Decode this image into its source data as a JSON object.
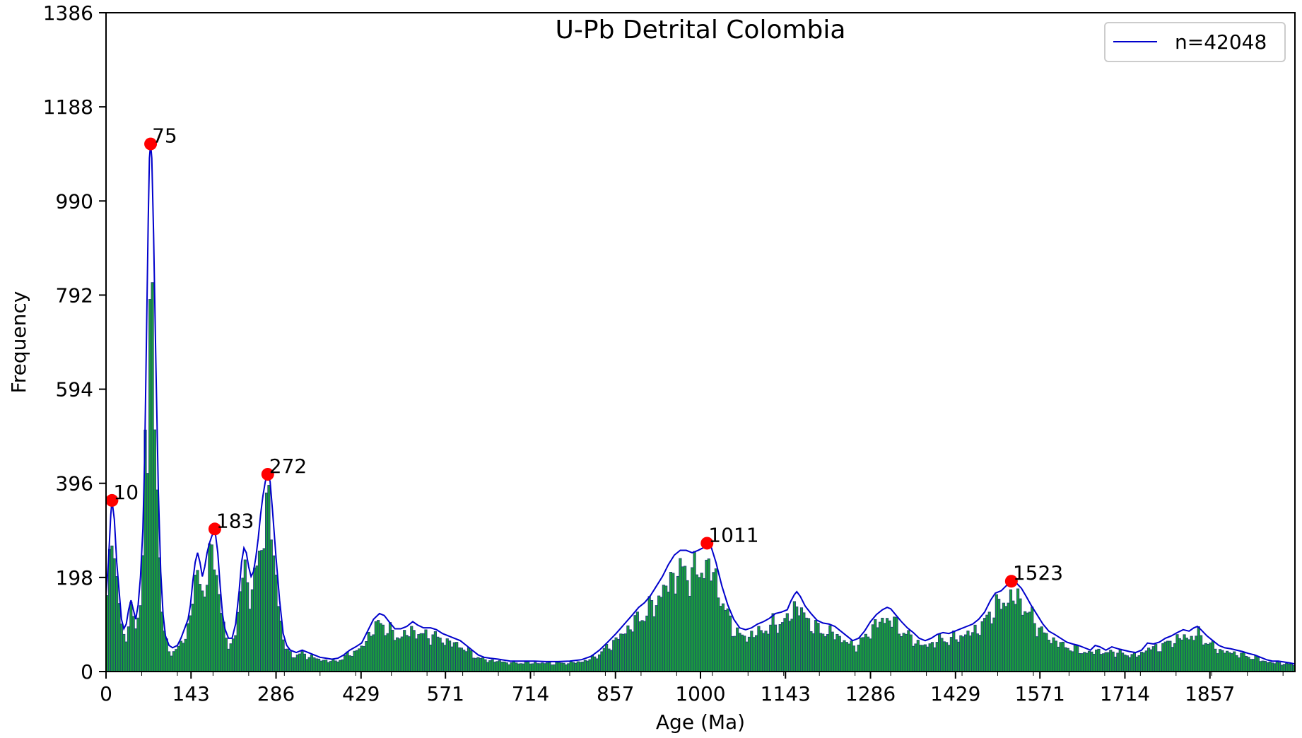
{
  "chart_data": {
    "type": "bar",
    "title": "U-Pb Detrital Colombia",
    "xlabel": "Age (Ma)",
    "ylabel": "Frequency",
    "xlim": [
      0,
      2000
    ],
    "ylim": [
      0,
      1386
    ],
    "x_ticks": [
      0,
      143,
      286,
      429,
      571,
      714,
      857,
      1000,
      1143,
      1286,
      1429,
      1571,
      1714,
      1857
    ],
    "y_ticks": [
      0,
      198,
      396,
      594,
      792,
      990,
      1188,
      1386
    ],
    "legend": {
      "position": "top-right",
      "entries": [
        {
          "label": "n=42048",
          "color": "#0000cc"
        }
      ]
    },
    "bar_color": "#1a9d3c",
    "bar_edge_color": "#1f3a7a",
    "curve_color": "#0000cc",
    "peak_color": "#ff0000",
    "bin_width": 4,
    "curve_points": [
      [
        0,
        160
      ],
      [
        4,
        230
      ],
      [
        8,
        330
      ],
      [
        10,
        360
      ],
      [
        14,
        320
      ],
      [
        18,
        230
      ],
      [
        22,
        170
      ],
      [
        26,
        110
      ],
      [
        30,
        90
      ],
      [
        34,
        100
      ],
      [
        38,
        130
      ],
      [
        42,
        150
      ],
      [
        46,
        130
      ],
      [
        50,
        110
      ],
      [
        54,
        140
      ],
      [
        58,
        200
      ],
      [
        62,
        300
      ],
      [
        65,
        450
      ],
      [
        68,
        700
      ],
      [
        71,
        950
      ],
      [
        73,
        1080
      ],
      [
        75,
        1110
      ],
      [
        77,
        1080
      ],
      [
        80,
        920
      ],
      [
        84,
        640
      ],
      [
        88,
        380
      ],
      [
        92,
        210
      ],
      [
        96,
        120
      ],
      [
        100,
        75
      ],
      [
        106,
        55
      ],
      [
        112,
        50
      ],
      [
        120,
        55
      ],
      [
        126,
        70
      ],
      [
        132,
        90
      ],
      [
        138,
        110
      ],
      [
        142,
        140
      ],
      [
        146,
        190
      ],
      [
        150,
        230
      ],
      [
        154,
        250
      ],
      [
        158,
        230
      ],
      [
        162,
        200
      ],
      [
        166,
        220
      ],
      [
        170,
        250
      ],
      [
        174,
        270
      ],
      [
        178,
        285
      ],
      [
        183,
        300
      ],
      [
        188,
        250
      ],
      [
        192,
        180
      ],
      [
        196,
        120
      ],
      [
        200,
        90
      ],
      [
        206,
        70
      ],
      [
        212,
        70
      ],
      [
        218,
        100
      ],
      [
        224,
        170
      ],
      [
        228,
        230
      ],
      [
        232,
        260
      ],
      [
        236,
        250
      ],
      [
        240,
        220
      ],
      [
        244,
        200
      ],
      [
        248,
        210
      ],
      [
        252,
        240
      ],
      [
        256,
        280
      ],
      [
        260,
        330
      ],
      [
        264,
        370
      ],
      [
        268,
        400
      ],
      [
        272,
        415
      ],
      [
        276,
        400
      ],
      [
        280,
        340
      ],
      [
        286,
        240
      ],
      [
        292,
        150
      ],
      [
        298,
        80
      ],
      [
        304,
        55
      ],
      [
        310,
        45
      ],
      [
        320,
        40
      ],
      [
        330,
        45
      ],
      [
        340,
        40
      ],
      [
        350,
        35
      ],
      [
        360,
        30
      ],
      [
        370,
        28
      ],
      [
        380,
        26
      ],
      [
        390,
        28
      ],
      [
        400,
        35
      ],
      [
        410,
        45
      ],
      [
        420,
        52
      ],
      [
        430,
        60
      ],
      [
        440,
        85
      ],
      [
        450,
        110
      ],
      [
        460,
        122
      ],
      [
        468,
        118
      ],
      [
        476,
        105
      ],
      [
        486,
        90
      ],
      [
        496,
        90
      ],
      [
        506,
        95
      ],
      [
        516,
        105
      ],
      [
        524,
        98
      ],
      [
        534,
        92
      ],
      [
        546,
        92
      ],
      [
        556,
        88
      ],
      [
        566,
        80
      ],
      [
        576,
        75
      ],
      [
        586,
        70
      ],
      [
        596,
        65
      ],
      [
        606,
        55
      ],
      [
        616,
        45
      ],
      [
        626,
        35
      ],
      [
        636,
        30
      ],
      [
        646,
        28
      ],
      [
        660,
        26
      ],
      [
        680,
        22
      ],
      [
        700,
        22
      ],
      [
        720,
        22
      ],
      [
        740,
        21
      ],
      [
        760,
        21
      ],
      [
        780,
        22
      ],
      [
        800,
        25
      ],
      [
        816,
        32
      ],
      [
        830,
        45
      ],
      [
        844,
        62
      ],
      [
        858,
        80
      ],
      [
        872,
        100
      ],
      [
        886,
        120
      ],
      [
        896,
        135
      ],
      [
        906,
        145
      ],
      [
        916,
        160
      ],
      [
        926,
        180
      ],
      [
        936,
        200
      ],
      [
        946,
        225
      ],
      [
        956,
        245
      ],
      [
        966,
        255
      ],
      [
        976,
        255
      ],
      [
        986,
        250
      ],
      [
        996,
        255
      ],
      [
        1004,
        260
      ],
      [
        1011,
        270
      ],
      [
        1018,
        262
      ],
      [
        1026,
        230
      ],
      [
        1036,
        180
      ],
      [
        1046,
        140
      ],
      [
        1056,
        110
      ],
      [
        1066,
        92
      ],
      [
        1076,
        88
      ],
      [
        1086,
        92
      ],
      [
        1096,
        100
      ],
      [
        1106,
        105
      ],
      [
        1116,
        112
      ],
      [
        1126,
        122
      ],
      [
        1136,
        125
      ],
      [
        1146,
        130
      ],
      [
        1152,
        148
      ],
      [
        1158,
        162
      ],
      [
        1162,
        168
      ],
      [
        1168,
        158
      ],
      [
        1176,
        138
      ],
      [
        1186,
        122
      ],
      [
        1196,
        108
      ],
      [
        1206,
        102
      ],
      [
        1216,
        100
      ],
      [
        1226,
        95
      ],
      [
        1236,
        85
      ],
      [
        1246,
        75
      ],
      [
        1256,
        65
      ],
      [
        1266,
        70
      ],
      [
        1276,
        85
      ],
      [
        1286,
        105
      ],
      [
        1296,
        120
      ],
      [
        1306,
        130
      ],
      [
        1314,
        135
      ],
      [
        1320,
        132
      ],
      [
        1328,
        120
      ],
      [
        1338,
        105
      ],
      [
        1348,
        92
      ],
      [
        1358,
        82
      ],
      [
        1368,
        70
      ],
      [
        1378,
        65
      ],
      [
        1388,
        70
      ],
      [
        1398,
        78
      ],
      [
        1408,
        82
      ],
      [
        1418,
        80
      ],
      [
        1428,
        85
      ],
      [
        1438,
        90
      ],
      [
        1448,
        95
      ],
      [
        1458,
        100
      ],
      [
        1468,
        110
      ],
      [
        1478,
        125
      ],
      [
        1488,
        150
      ],
      [
        1496,
        165
      ],
      [
        1506,
        170
      ],
      [
        1514,
        180
      ],
      [
        1523,
        190
      ],
      [
        1530,
        188
      ],
      [
        1540,
        175
      ],
      [
        1548,
        158
      ],
      [
        1556,
        140
      ],
      [
        1566,
        120
      ],
      [
        1576,
        100
      ],
      [
        1586,
        85
      ],
      [
        1596,
        78
      ],
      [
        1606,
        70
      ],
      [
        1616,
        62
      ],
      [
        1626,
        58
      ],
      [
        1636,
        55
      ],
      [
        1646,
        50
      ],
      [
        1656,
        45
      ],
      [
        1664,
        55
      ],
      [
        1672,
        52
      ],
      [
        1682,
        45
      ],
      [
        1692,
        52
      ],
      [
        1702,
        48
      ],
      [
        1712,
        45
      ],
      [
        1722,
        42
      ],
      [
        1732,
        40
      ],
      [
        1742,
        45
      ],
      [
        1752,
        60
      ],
      [
        1762,
        58
      ],
      [
        1772,
        62
      ],
      [
        1782,
        70
      ],
      [
        1792,
        75
      ],
      [
        1802,
        82
      ],
      [
        1812,
        88
      ],
      [
        1822,
        85
      ],
      [
        1830,
        92
      ],
      [
        1836,
        95
      ],
      [
        1842,
        88
      ],
      [
        1852,
        75
      ],
      [
        1862,
        65
      ],
      [
        1872,
        55
      ],
      [
        1882,
        50
      ],
      [
        1892,
        48
      ],
      [
        1902,
        45
      ],
      [
        1912,
        42
      ],
      [
        1922,
        38
      ],
      [
        1932,
        35
      ],
      [
        1942,
        30
      ],
      [
        1952,
        25
      ],
      [
        1962,
        22
      ],
      [
        1972,
        22
      ],
      [
        1982,
        20
      ],
      [
        1992,
        18
      ],
      [
        2000,
        16
      ]
    ],
    "peaks": [
      {
        "age": 10,
        "frequency": 360,
        "label": "10"
      },
      {
        "age": 75,
        "frequency": 1110,
        "label": "75"
      },
      {
        "age": 183,
        "frequency": 300,
        "label": "183"
      },
      {
        "age": 272,
        "frequency": 415,
        "label": "272"
      },
      {
        "age": 1011,
        "frequency": 270,
        "label": "1011"
      },
      {
        "age": 1523,
        "frequency": 190,
        "label": "1523"
      }
    ]
  }
}
